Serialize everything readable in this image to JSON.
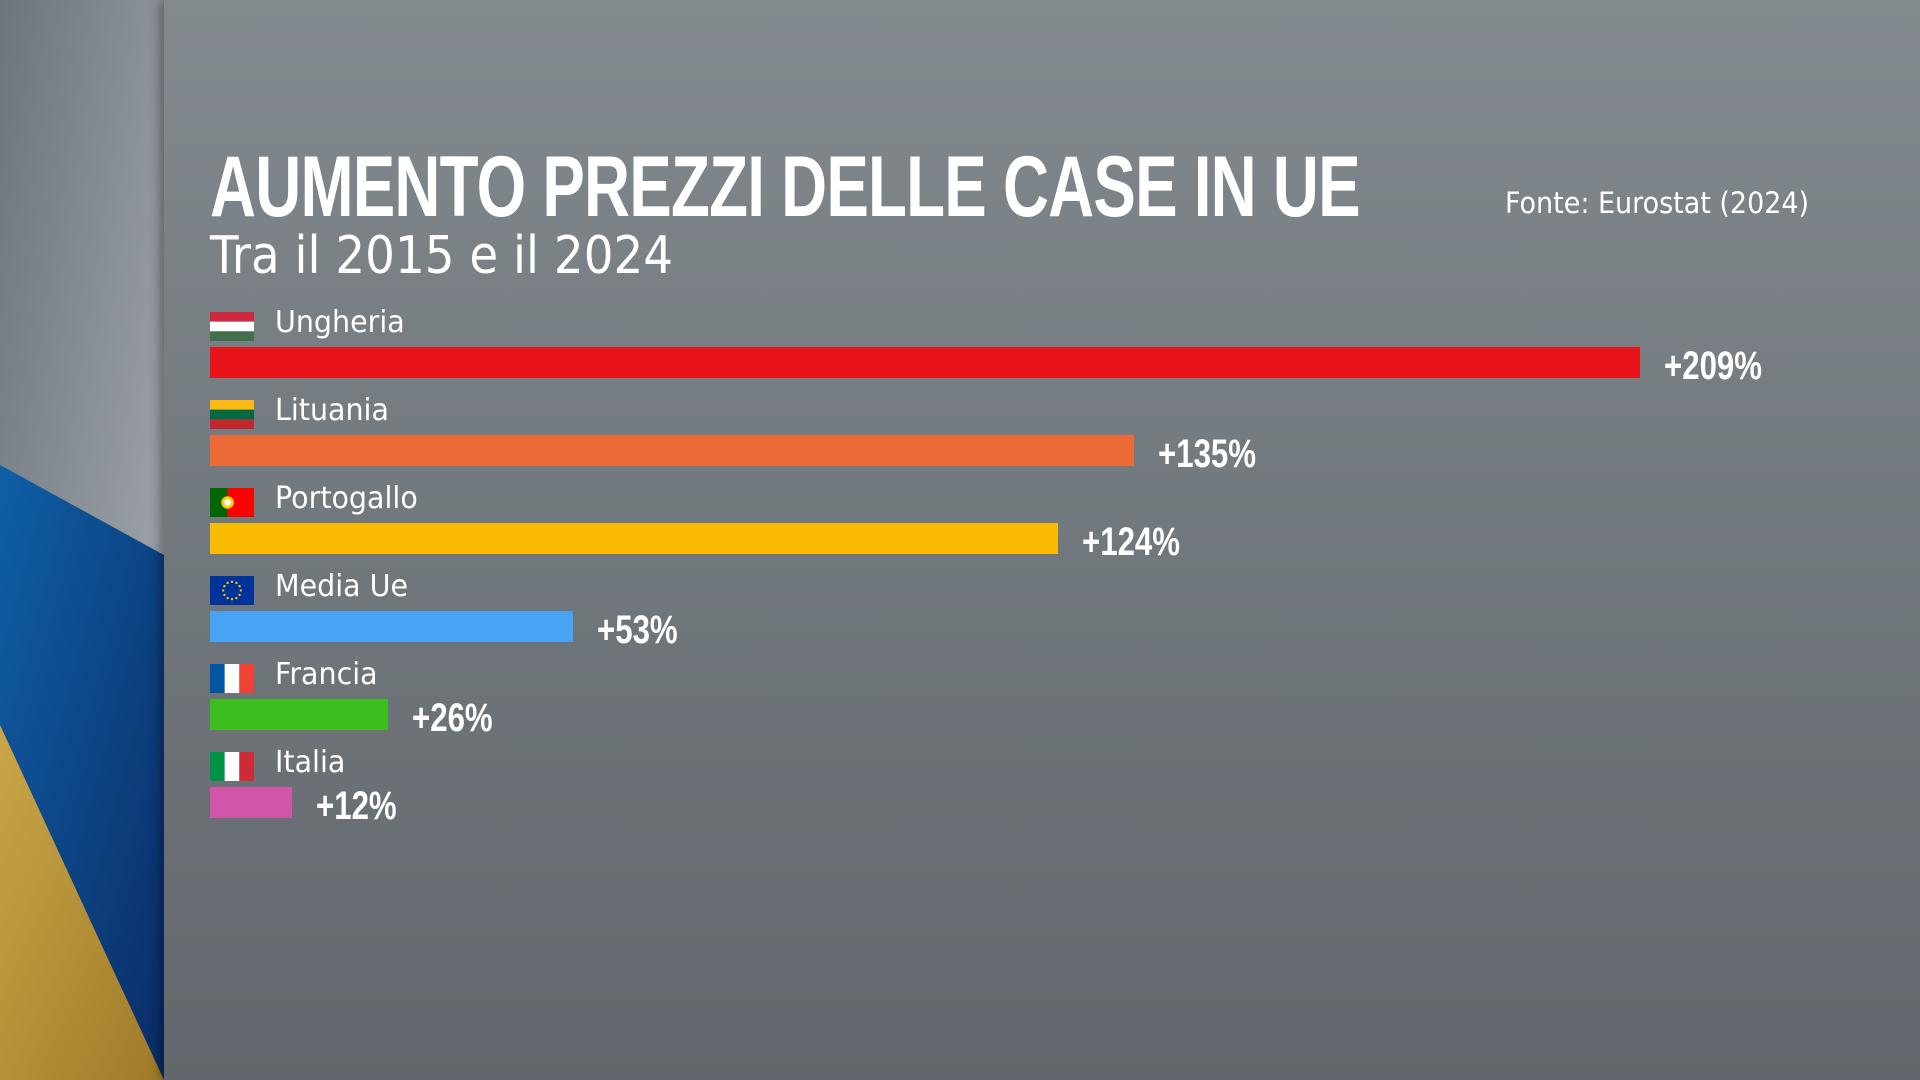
{
  "chart_data": {
    "type": "bar",
    "orientation": "horizontal",
    "title": "AUMENTO PREZZI DELLE CASE IN UE",
    "subtitle": "Tra il 2015 e il 2024",
    "source": "Fonte: Eurostat (2024)",
    "categories": [
      "Ungheria",
      "Lituania",
      "Portogallo",
      "Media Ue",
      "Francia",
      "Italia"
    ],
    "values": [
      209,
      135,
      124,
      53,
      26,
      12
    ],
    "value_labels": [
      "+209%",
      "+135%",
      "+124%",
      "+53%",
      "+26%",
      "+12%"
    ],
    "colors": [
      "#e8141a",
      "#ec6a36",
      "#fbbb00",
      "#47a3f3",
      "#3cbf1c",
      "#d155a8"
    ],
    "flags": [
      "flag-hungary-icon",
      "flag-lithuania-icon",
      "flag-portugal-icon",
      "flag-eu-icon",
      "flag-france-icon",
      "flag-italy-icon"
    ],
    "unit": "%",
    "legend": "none",
    "grid": false
  }
}
